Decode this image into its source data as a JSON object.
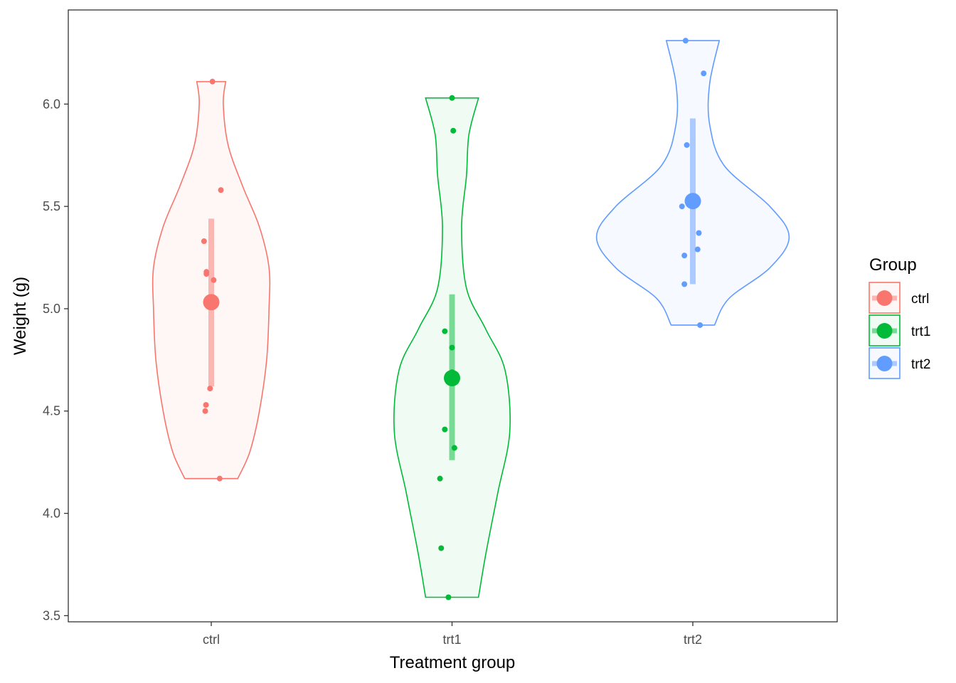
{
  "chart_data": {
    "type": "violin",
    "xlabel": "Treatment group",
    "ylabel": "Weight (g)",
    "ylim": [
      3.47,
      6.46
    ],
    "y_ticks": [
      "3.5",
      "4.0",
      "4.5",
      "5.0",
      "5.5",
      "6.0"
    ],
    "categories": [
      "ctrl",
      "trt1",
      "trt2"
    ],
    "legend": {
      "title": "Group",
      "position": "right",
      "entries": [
        "ctrl",
        "trt1",
        "trt2"
      ]
    },
    "grid": false,
    "series": [
      {
        "name": "ctrl",
        "color": "#F8766D",
        "points": [
          4.17,
          5.58,
          5.18,
          6.11,
          4.5,
          4.61,
          5.17,
          4.53,
          5.33,
          5.14
        ],
        "mean": 5.032,
        "mean_ci": [
          4.62,
          5.44
        ],
        "violin_width": [
          [
            4.17,
            0.11
          ],
          [
            4.3,
            0.16
          ],
          [
            4.5,
            0.2
          ],
          [
            4.75,
            0.23
          ],
          [
            5.0,
            0.24
          ],
          [
            5.2,
            0.24
          ],
          [
            5.4,
            0.2
          ],
          [
            5.6,
            0.13
          ],
          [
            5.8,
            0.07
          ],
          [
            6.0,
            0.05
          ],
          [
            6.11,
            0.06
          ]
        ]
      },
      {
        "name": "trt1",
        "color": "#00BA38",
        "points": [
          4.81,
          4.17,
          4.41,
          3.59,
          5.87,
          3.83,
          6.03,
          4.89,
          4.32,
          4.69
        ],
        "mean": 4.661,
        "mean_ci": [
          4.26,
          5.07
        ],
        "violin_width": [
          [
            3.59,
            0.11
          ],
          [
            3.8,
            0.14
          ],
          [
            4.1,
            0.19
          ],
          [
            4.4,
            0.24
          ],
          [
            4.7,
            0.22
          ],
          [
            4.9,
            0.14
          ],
          [
            5.1,
            0.06
          ],
          [
            5.4,
            0.04
          ],
          [
            5.65,
            0.06
          ],
          [
            5.85,
            0.07
          ],
          [
            6.03,
            0.11
          ]
        ]
      },
      {
        "name": "trt2",
        "color": "#619CFF",
        "points": [
          6.31,
          5.12,
          5.54,
          5.5,
          5.37,
          5.29,
          4.92,
          6.15,
          5.8,
          5.26
        ],
        "mean": 5.526,
        "mean_ci": [
          5.12,
          5.93
        ],
        "violin_width": [
          [
            4.92,
            0.09
          ],
          [
            5.05,
            0.15
          ],
          [
            5.2,
            0.32
          ],
          [
            5.35,
            0.4
          ],
          [
            5.5,
            0.32
          ],
          [
            5.7,
            0.13
          ],
          [
            5.9,
            0.07
          ],
          [
            6.1,
            0.07
          ],
          [
            6.31,
            0.11
          ]
        ]
      }
    ]
  }
}
